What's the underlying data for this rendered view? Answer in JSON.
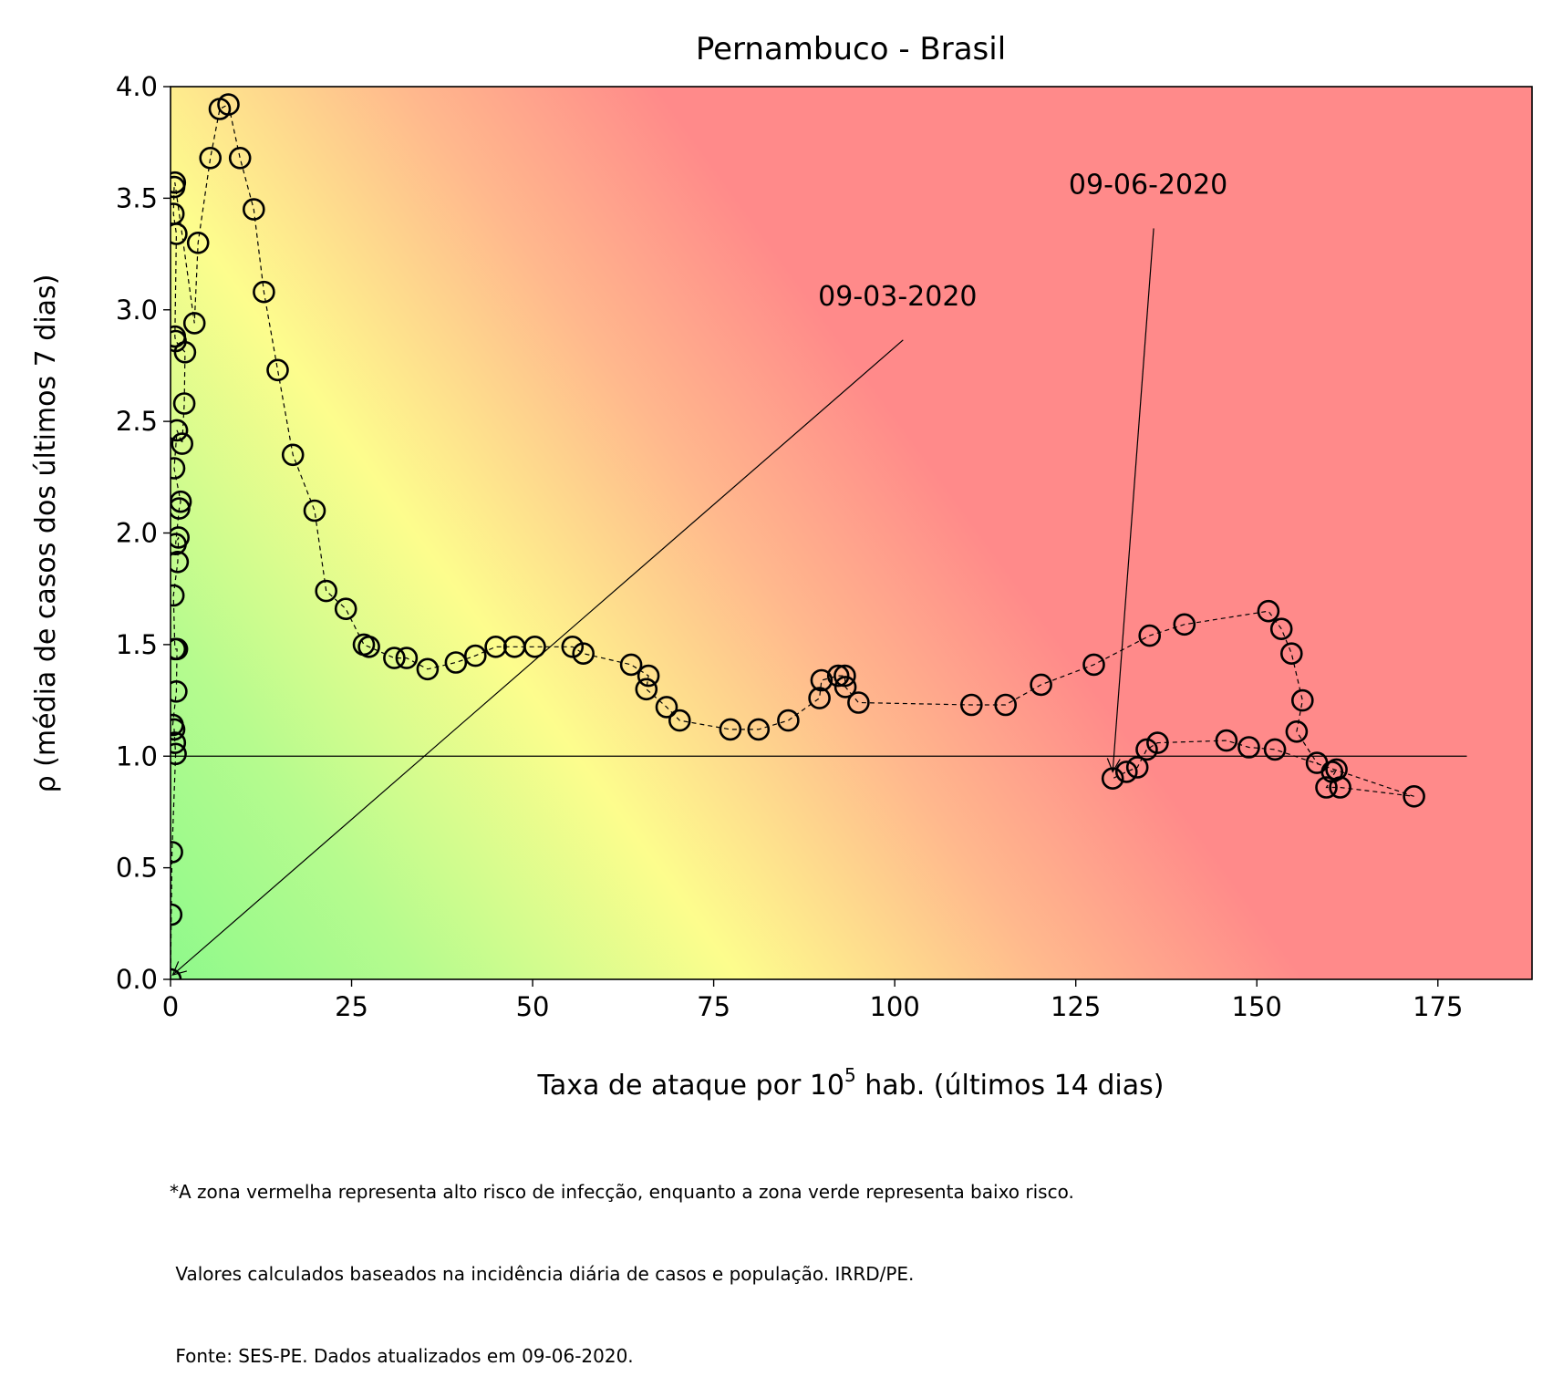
{
  "chart_data": {
    "type": "scatter",
    "title": "Pernambuco - Brasil",
    "xlabel_main": "Taxa de ataque por 10",
    "xlabel_sup": "5",
    "xlabel_rest": " hab. (últimos 14 dias)",
    "ylabel": "ρ (média de casos dos últimos 7 dias)",
    "xlim": [
      0,
      188
    ],
    "ylim": [
      0,
      4.0
    ],
    "xticks": [
      0,
      25,
      50,
      75,
      100,
      125,
      150,
      175
    ],
    "yticks": [
      0.0,
      0.5,
      1.0,
      1.5,
      2.0,
      2.5,
      3.0,
      3.5,
      4.0
    ],
    "ytick_labels": [
      "0.0",
      "0.5",
      "1.0",
      "1.5",
      "2.0",
      "2.5",
      "3.0",
      "3.5",
      "4.0"
    ],
    "xtick_labels": [
      "0",
      "25",
      "50",
      "75",
      "100",
      "125",
      "150",
      "175"
    ],
    "reference_line": {
      "y": 1.0,
      "x_range": [
        0,
        179
      ]
    },
    "background": "risk gradient: green (low attack rate, low rho) to yellow to red (high)",
    "colors": {
      "low": "#8ff98b",
      "mid": "#fdfd8d",
      "high": "#ff8a8a",
      "marker": "#000000"
    },
    "series": [
      {
        "marker": "open-circle",
        "line": "dashed",
        "points": [
          [
            0.0,
            0.0
          ],
          [
            0.1,
            0.29
          ],
          [
            0.2,
            0.57
          ],
          [
            0.7,
            1.01
          ],
          [
            0.6,
            1.06
          ],
          [
            0.5,
            1.12
          ],
          [
            0.3,
            1.14
          ],
          [
            0.8,
            1.29
          ],
          [
            0.9,
            1.48
          ],
          [
            0.6,
            1.48
          ],
          [
            0.4,
            1.72
          ],
          [
            1.0,
            1.87
          ],
          [
            1.1,
            1.98
          ],
          [
            0.7,
            1.95
          ],
          [
            1.2,
            2.11
          ],
          [
            1.4,
            2.14
          ],
          [
            0.5,
            2.29
          ],
          [
            0.9,
            2.46
          ],
          [
            1.6,
            2.4
          ],
          [
            1.9,
            2.58
          ],
          [
            2.0,
            2.81
          ],
          [
            0.7,
            2.86
          ],
          [
            0.6,
            2.88
          ],
          [
            0.8,
            3.34
          ],
          [
            0.4,
            3.43
          ],
          [
            0.5,
            3.55
          ],
          [
            0.6,
            3.57
          ],
          [
            3.3,
            2.94
          ],
          [
            3.8,
            3.3
          ],
          [
            5.5,
            3.68
          ],
          [
            6.8,
            3.9
          ],
          [
            8.0,
            3.92
          ],
          [
            9.6,
            3.68
          ],
          [
            11.5,
            3.45
          ],
          [
            12.9,
            3.08
          ],
          [
            14.8,
            2.73
          ],
          [
            16.9,
            2.35
          ],
          [
            19.9,
            2.1
          ],
          [
            21.5,
            1.74
          ],
          [
            24.2,
            1.66
          ],
          [
            26.7,
            1.5
          ],
          [
            27.4,
            1.49
          ],
          [
            30.9,
            1.44
          ],
          [
            32.6,
            1.44
          ],
          [
            35.5,
            1.39
          ],
          [
            39.4,
            1.42
          ],
          [
            42.1,
            1.45
          ],
          [
            44.9,
            1.49
          ],
          [
            47.5,
            1.49
          ],
          [
            50.3,
            1.49
          ],
          [
            55.5,
            1.49
          ],
          [
            57.0,
            1.46
          ],
          [
            63.6,
            1.41
          ],
          [
            66.0,
            1.36
          ],
          [
            65.7,
            1.3
          ],
          [
            68.5,
            1.22
          ],
          [
            70.3,
            1.16
          ],
          [
            77.3,
            1.12
          ],
          [
            81.2,
            1.12
          ],
          [
            85.3,
            1.16
          ],
          [
            89.6,
            1.26
          ],
          [
            89.9,
            1.34
          ],
          [
            92.2,
            1.36
          ],
          [
            93.1,
            1.36
          ],
          [
            93.2,
            1.31
          ],
          [
            95.0,
            1.24
          ],
          [
            110.6,
            1.23
          ],
          [
            115.3,
            1.23
          ],
          [
            120.2,
            1.32
          ],
          [
            127.5,
            1.41
          ],
          [
            135.2,
            1.54
          ],
          [
            140.0,
            1.59
          ],
          [
            151.6,
            1.65
          ],
          [
            153.4,
            1.57
          ],
          [
            154.8,
            1.46
          ],
          [
            156.3,
            1.25
          ],
          [
            155.5,
            1.11
          ],
          [
            158.3,
            0.97
          ],
          [
            160.4,
            0.93
          ],
          [
            161.0,
            0.94
          ],
          [
            159.6,
            0.86
          ],
          [
            161.5,
            0.86
          ],
          [
            171.7,
            0.82
          ],
          [
            152.5,
            1.03
          ],
          [
            148.9,
            1.04
          ],
          [
            145.8,
            1.07
          ],
          [
            136.3,
            1.06
          ],
          [
            134.8,
            1.03
          ],
          [
            133.5,
            0.95
          ],
          [
            132.0,
            0.93
          ],
          [
            130.1,
            0.9
          ]
        ]
      }
    ],
    "annotations": [
      {
        "text": "09-03-2020",
        "point": [
          0.3,
          0.02
        ],
        "text_at": [
          100.4,
          3.02
        ]
      },
      {
        "text": "09-06-2020",
        "point": [
          130.1,
          0.93
        ],
        "text_at": [
          135.0,
          3.52
        ]
      }
    ]
  },
  "footnote": {
    "line1": "*A zona vermelha representa alto risco de infecção, enquanto a zona verde representa baixo risco.",
    "line2": " Valores calculados baseados na incidência diária de casos e população. IRRD/PE.",
    "line3": " Fonte: SES-PE. Dados atualizados em 09-06-2020."
  }
}
